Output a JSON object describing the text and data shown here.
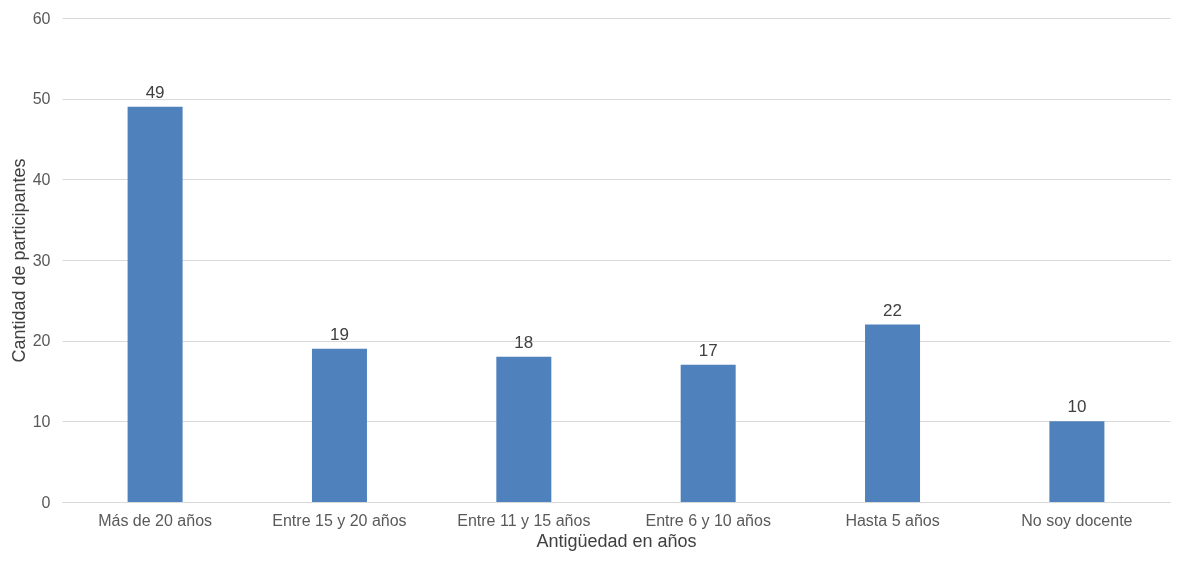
{
  "chart_data": {
    "type": "bar",
    "xlabel": "Antigüedad en años",
    "ylabel": "Cantidad de participantes",
    "categories": [
      "Más de 20 años",
      "Entre 15 y 20 años",
      "Entre 11 y 15 años",
      "Entre 6 y 10 años",
      "Hasta 5 años",
      "No soy docente"
    ],
    "values": [
      49,
      19,
      18,
      17,
      22,
      10
    ],
    "color": "#4f81bd",
    "ylim": [
      0,
      60
    ],
    "yticks": [
      0,
      10,
      20,
      30,
      40,
      50,
      60
    ],
    "grid": "y",
    "data_labels": true
  }
}
